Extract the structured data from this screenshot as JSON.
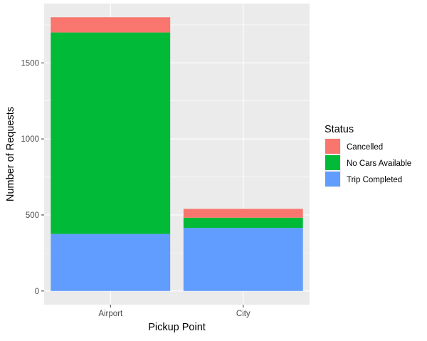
{
  "chart_data": {
    "type": "bar",
    "stacked": true,
    "title": "",
    "xlabel": "Pickup Point",
    "ylabel": "Number of Requests",
    "categories": [
      "Airport",
      "City"
    ],
    "series": [
      {
        "name": "Trip Completed",
        "color": "#619CFF",
        "values": [
          375,
          415
        ]
      },
      {
        "name": "No Cars Available",
        "color": "#00BA38",
        "values": [
          1325,
          67
        ]
      },
      {
        "name": "Cancelled",
        "color": "#F8766D",
        "values": [
          100,
          58
        ]
      }
    ],
    "ylim": [
      -90,
      1890
    ],
    "yticks": [
      0,
      500,
      1000,
      1500
    ],
    "grid": true,
    "legend": {
      "title": "Status",
      "position": "right",
      "order": [
        "Cancelled",
        "No Cars Available",
        "Trip Completed"
      ]
    },
    "panel_color": "#EBEBEB",
    "grid_color": "#FFFFFF"
  }
}
